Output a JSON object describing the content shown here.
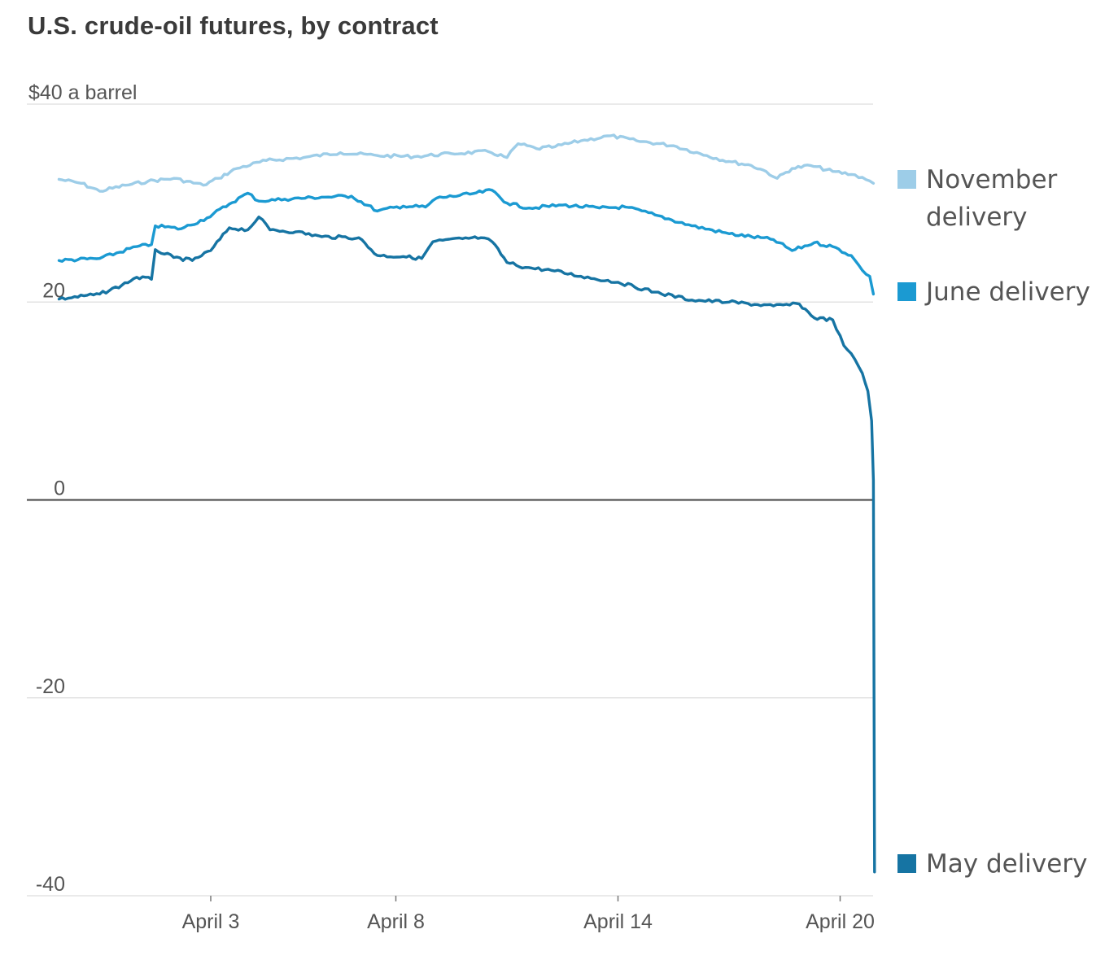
{
  "title": "U.S. crude-oil futures, by contract",
  "colors": {
    "november": "#9dcde8",
    "june": "#1b9ad2",
    "may": "#1674a3",
    "grid": "#dddddd",
    "zero": "#555555",
    "text": "#555555"
  },
  "chart_data": {
    "type": "line",
    "title": "U.S. crude-oil futures, by contract",
    "ylabel": "$ a barrel",
    "ylim": [
      -40,
      40
    ],
    "y_ticks": [
      {
        "value": 40,
        "label": "$40 a barrel"
      },
      {
        "value": 20,
        "label": "20"
      },
      {
        "value": 0,
        "label": "0"
      },
      {
        "value": -20,
        "label": "-20"
      },
      {
        "value": -40,
        "label": "-40"
      }
    ],
    "x_ticks": [
      {
        "day": 3,
        "label": "April 3"
      },
      {
        "day": 8,
        "label": "April 8"
      },
      {
        "day": 14,
        "label": "April 14"
      },
      {
        "day": 20,
        "label": "April 20"
      }
    ],
    "xlim": [
      -1.1,
      20.9
    ],
    "series": [
      {
        "name": "November delivery",
        "legend": [
          "November",
          "delivery"
        ],
        "color_key": "november",
        "points": [
          [
            -1.1,
            32.4
          ],
          [
            -0.5,
            32.0
          ],
          [
            0,
            31.2
          ],
          [
            0.7,
            31.8
          ],
          [
            1.3,
            32.2
          ],
          [
            2,
            32.5
          ],
          [
            2.8,
            31.8
          ],
          [
            3.2,
            32.5
          ],
          [
            3.7,
            33.5
          ],
          [
            4.5,
            34.3
          ],
          [
            5.5,
            34.6
          ],
          [
            6.5,
            35.1
          ],
          [
            7.5,
            34.8
          ],
          [
            8.5,
            34.7
          ],
          [
            9.5,
            35.0
          ],
          [
            10.5,
            35.2
          ],
          [
            11.0,
            34.6
          ],
          [
            11.3,
            36.0
          ],
          [
            11.8,
            35.5
          ],
          [
            12.3,
            35.7
          ],
          [
            13,
            36.3
          ],
          [
            13.8,
            36.8
          ],
          [
            14.5,
            36.3
          ],
          [
            15.5,
            35.8
          ],
          [
            16.4,
            34.8
          ],
          [
            17.0,
            34.2
          ],
          [
            17.6,
            33.8
          ],
          [
            18.0,
            33.2
          ],
          [
            18.3,
            32.5
          ],
          [
            18.7,
            33.5
          ],
          [
            19.2,
            33.8
          ],
          [
            19.8,
            33.2
          ],
          [
            20.3,
            32.9
          ],
          [
            20.6,
            32.6
          ],
          [
            20.9,
            32.0
          ]
        ]
      },
      {
        "name": "June delivery",
        "legend": [
          "June delivery"
        ],
        "color_key": "june",
        "points": [
          [
            -1.1,
            24.2
          ],
          [
            0,
            24.4
          ],
          [
            1,
            25.6
          ],
          [
            1.4,
            25.8
          ],
          [
            1.5,
            27.7
          ],
          [
            2.2,
            27.4
          ],
          [
            2.9,
            28.5
          ],
          [
            3.5,
            29.9
          ],
          [
            4.0,
            31.0
          ],
          [
            4.3,
            30.2
          ],
          [
            5.0,
            30.4
          ],
          [
            6.0,
            30.6
          ],
          [
            6.8,
            30.7
          ],
          [
            7.5,
            29.2
          ],
          [
            8.2,
            29.7
          ],
          [
            8.8,
            29.6
          ],
          [
            9.1,
            30.5
          ],
          [
            10,
            30.9
          ],
          [
            10.6,
            31.3
          ],
          [
            11.0,
            30.0
          ],
          [
            11.6,
            29.5
          ],
          [
            12.5,
            29.8
          ],
          [
            13.5,
            29.5
          ],
          [
            14.2,
            29.6
          ],
          [
            15,
            28.8
          ],
          [
            16.0,
            27.7
          ],
          [
            17.0,
            26.9
          ],
          [
            18.2,
            26.3
          ],
          [
            18.7,
            25.2
          ],
          [
            19.3,
            26.0
          ],
          [
            19.8,
            25.6
          ],
          [
            20.3,
            24.7
          ],
          [
            20.6,
            23.2
          ],
          [
            20.8,
            22.6
          ],
          [
            20.9,
            20.8
          ]
        ]
      },
      {
        "name": "May delivery",
        "legend": [
          "May delivery"
        ],
        "color_key": "may",
        "points": [
          [
            -1.1,
            20.3
          ],
          [
            0,
            20.8
          ],
          [
            0.6,
            21.7
          ],
          [
            1.0,
            22.5
          ],
          [
            1.4,
            22.3
          ],
          [
            1.5,
            25.3
          ],
          [
            2.0,
            24.5
          ],
          [
            2.5,
            24.2
          ],
          [
            3.0,
            25.2
          ],
          [
            3.5,
            27.5
          ],
          [
            4.0,
            27.3
          ],
          [
            4.3,
            28.6
          ],
          [
            4.6,
            27.3
          ],
          [
            5.3,
            27.1
          ],
          [
            6.0,
            26.6
          ],
          [
            7.0,
            26.5
          ],
          [
            7.5,
            24.7
          ],
          [
            8.2,
            24.6
          ],
          [
            8.7,
            24.4
          ],
          [
            9.0,
            26.1
          ],
          [
            9.8,
            26.4
          ],
          [
            10.3,
            26.5
          ],
          [
            10.6,
            26.1
          ],
          [
            11.0,
            24.0
          ],
          [
            11.5,
            23.5
          ],
          [
            12.2,
            23.2
          ],
          [
            13.0,
            22.6
          ],
          [
            14.0,
            22.0
          ],
          [
            15.0,
            21.0
          ],
          [
            16.0,
            20.2
          ],
          [
            17.0,
            20.0
          ],
          [
            18.2,
            19.6
          ],
          [
            18.9,
            19.8
          ],
          [
            19.3,
            18.4
          ],
          [
            19.8,
            18.2
          ],
          [
            20.1,
            15.6
          ],
          [
            20.4,
            14.2
          ],
          [
            20.6,
            12.8
          ],
          [
            20.75,
            11.0
          ],
          [
            20.85,
            8.0
          ],
          [
            20.9,
            2.0
          ],
          [
            20.93,
            -37.6
          ]
        ]
      }
    ]
  }
}
